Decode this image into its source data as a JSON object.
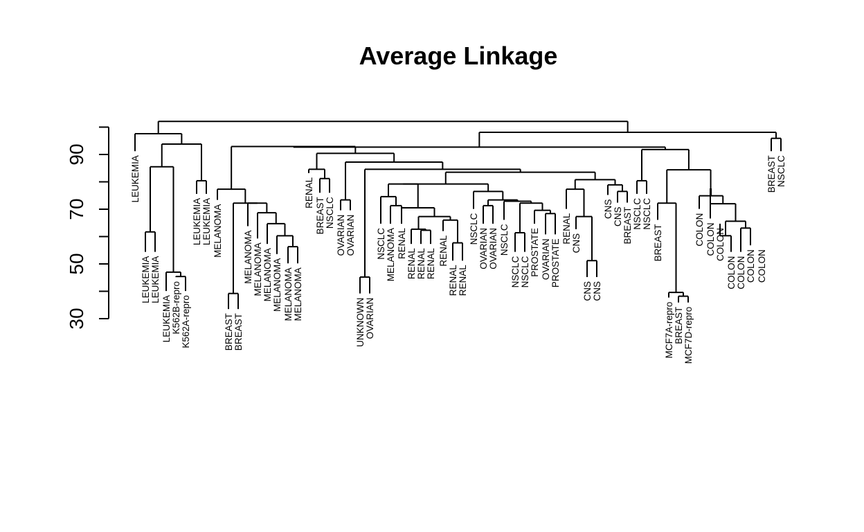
{
  "chart_data": {
    "type": "dendrogram",
    "title": "Average Linkage",
    "xlabel": "",
    "ylabel": "",
    "y_axis": {
      "ylim": [
        30,
        105
      ],
      "ticks": [
        30,
        40,
        50,
        60,
        70,
        80,
        90,
        100
      ],
      "tick_labels": [
        "30",
        "",
        "50",
        "",
        "70",
        "",
        "90",
        ""
      ]
    },
    "leaves": [
      {
        "label": "LEUKEMIA",
        "height": 91.2
      },
      {
        "label": "LEUKEMIA",
        "height": 54.4
      },
      {
        "label": "LEUKEMIA",
        "height": 54.4
      },
      {
        "label": "LEUKEMIA",
        "height": 40.1
      },
      {
        "label": "K562B-repro",
        "height": 45.2
      },
      {
        "label": "K562A-repro",
        "height": 40.1
      },
      {
        "label": "LEUKEMIA",
        "height": 75.6
      },
      {
        "label": "LEUKEMIA",
        "height": 75.6
      },
      {
        "label": "MELANOMA",
        "height": 73.4
      },
      {
        "label": "BREAST",
        "height": 33.5
      },
      {
        "label": "BREAST",
        "height": 33.5
      },
      {
        "label": "MELANOMA",
        "height": 63.8
      },
      {
        "label": "MELANOMA",
        "height": 59.3
      },
      {
        "label": "MELANOMA",
        "height": 57.3
      },
      {
        "label": "MELANOMA",
        "height": 53.6
      },
      {
        "label": "MELANOMA",
        "height": 50.2
      },
      {
        "label": "MELANOMA",
        "height": 50.2
      },
      {
        "label": "RENAL",
        "height": 83.2
      },
      {
        "label": "BREAST",
        "height": 76.0
      },
      {
        "label": "NSCLC",
        "height": 76.0
      },
      {
        "label": "OVARIAN",
        "height": 69.6
      },
      {
        "label": "OVARIAN",
        "height": 69.6
      },
      {
        "label": "UNKNOWN",
        "height": 39.2
      },
      {
        "label": "OVARIAN",
        "height": 39.2
      },
      {
        "label": "NSCLC",
        "height": 64.7
      },
      {
        "label": "MELANOMA",
        "height": 64.7
      },
      {
        "label": "RENAL",
        "height": 64.7
      },
      {
        "label": "RENAL",
        "height": 57.3
      },
      {
        "label": "RENAL",
        "height": 57.3
      },
      {
        "label": "RENAL",
        "height": 57.3
      },
      {
        "label": "RENAL",
        "height": 62.0
      },
      {
        "label": "RENAL",
        "height": 51.2
      },
      {
        "label": "RENAL",
        "height": 51.2
      },
      {
        "label": "NSCLC",
        "height": 70.1
      },
      {
        "label": "OVARIAN",
        "height": 64.7
      },
      {
        "label": "OVARIAN",
        "height": 64.7
      },
      {
        "label": "NSCLC",
        "height": 66.1
      },
      {
        "label": "NSCLC",
        "height": 54.4
      },
      {
        "label": "NSCLC",
        "height": 54.4
      },
      {
        "label": "PROSTATE",
        "height": 64.7
      },
      {
        "label": "OVARIAN",
        "height": 60.8
      },
      {
        "label": "PROSTATE",
        "height": 60.8
      },
      {
        "label": "RENAL",
        "height": 70.1
      },
      {
        "label": "CNS",
        "height": 62.7
      },
      {
        "label": "CNS",
        "height": 45.2
      },
      {
        "label": "CNS",
        "height": 45.2
      },
      {
        "label": "CNS",
        "height": 75.2
      },
      {
        "label": "CNS",
        "height": 72.4
      },
      {
        "label": "BREAST",
        "height": 72.4
      },
      {
        "label": "NSCLC",
        "height": 75.6
      },
      {
        "label": "NSCLC",
        "height": 75.6
      },
      {
        "label": "BREAST",
        "height": 66.1
      },
      {
        "label": "MCF7A-repro",
        "height": 37.7
      },
      {
        "label": "BREAST",
        "height": 35.9
      },
      {
        "label": "MCF7D-repro",
        "height": 35.9
      },
      {
        "label": "COLON",
        "height": 70.1
      },
      {
        "label": "COLON",
        "height": 66.6
      },
      {
        "label": "COLON",
        "height": 64.7
      },
      {
        "label": "COLON",
        "height": 54.4
      },
      {
        "label": "COLON",
        "height": 54.4
      },
      {
        "label": "COLON",
        "height": 56.8
      },
      {
        "label": "COLON",
        "height": 56.8
      },
      {
        "label": "BREAST",
        "height": 91.2
      },
      {
        "label": "NSCLC",
        "height": 91.2
      }
    ],
    "merges": [
      [
        1,
        2,
        61.7
      ],
      [
        4,
        5,
        45.4
      ],
      [
        3,
        "m2",
        47.0
      ],
      [
        "m1",
        "m3",
        85.5
      ],
      [
        0,
        "m4",
        97.6
      ],
      [
        6,
        7,
        80.4
      ],
      [
        "m4b",
        "m5b",
        93.8
      ],
      [
        9,
        10,
        39.2
      ],
      [
        15,
        16,
        56.3
      ],
      [
        14,
        "m9",
        60.3
      ],
      [
        13,
        "m10",
        64.7
      ],
      [
        12,
        "m11",
        68.7
      ],
      [
        11,
        "m12",
        72.2
      ],
      [
        "m8",
        "m13",
        77.3
      ],
      [
        8,
        "m14",
        77.3
      ],
      [
        18,
        19,
        81.2
      ],
      [
        20,
        21,
        73.4
      ],
      [
        22,
        23,
        45.2
      ],
      [
        25,
        26,
        71.3
      ],
      [
        24,
        "m20",
        74.6
      ],
      [
        28,
        29,
        62.3
      ],
      [
        27,
        "m22",
        62.7
      ],
      [
        31,
        32,
        57.7
      ],
      [
        30,
        "m24",
        66.0
      ],
      [
        "m23",
        "m25",
        67.3
      ],
      [
        26,
        "m26",
        70.5
      ],
      [
        40,
        41,
        68.4
      ],
      [
        39,
        "m28",
        69.6
      ],
      [
        37,
        38,
        61.4
      ],
      [
        "m30",
        "m29",
        72.2
      ],
      [
        36,
        "m31",
        72.9
      ],
      [
        34,
        35,
        71.3
      ],
      [
        "m33",
        "m32",
        73.4
      ],
      [
        33,
        "m34",
        76.5
      ],
      [
        "m27",
        "m35",
        79.2
      ],
      [
        "m21",
        "m36",
        79.2
      ],
      [
        44,
        45,
        51.2
      ],
      [
        43,
        "m38",
        67.3
      ],
      [
        42,
        "m39",
        77.3
      ],
      [
        47,
        48,
        76.5
      ],
      [
        46,
        "m41",
        78.9
      ],
      [
        "m40",
        "m42",
        80.8
      ],
      [
        "m37",
        "m43",
        83.5
      ],
      [
        "m19",
        "m44",
        84.6
      ],
      [
        "m18",
        "m45",
        87.2
      ],
      [
        17,
        "m17",
        90.4
      ],
      [
        "m46",
        "m47",
        92.9
      ],
      [
        49,
        50,
        80.4
      ],
      [
        53,
        54,
        38.2
      ],
      [
        52,
        "m50",
        39.6
      ],
      [
        51,
        "m51",
        72.2
      ],
      [
        59,
        60,
        63.1
      ],
      [
        57,
        58,
        60.3
      ],
      [
        "m53",
        "m52",
        65.6
      ],
      [
        56,
        "m54",
        72.0
      ],
      [
        55,
        "m55",
        74.9
      ],
      [
        54,
        "m56",
        77.6
      ],
      [
        "m52b",
        "m57",
        84.4
      ],
      [
        "m49",
        "m58",
        91.8
      ],
      [
        "m48",
        "m59",
        92.7
      ],
      [
        62,
        63,
        95.9
      ],
      [
        "m60",
        "m61",
        98.1
      ],
      [
        "m7",
        "m62",
        102.1
      ]
    ]
  }
}
